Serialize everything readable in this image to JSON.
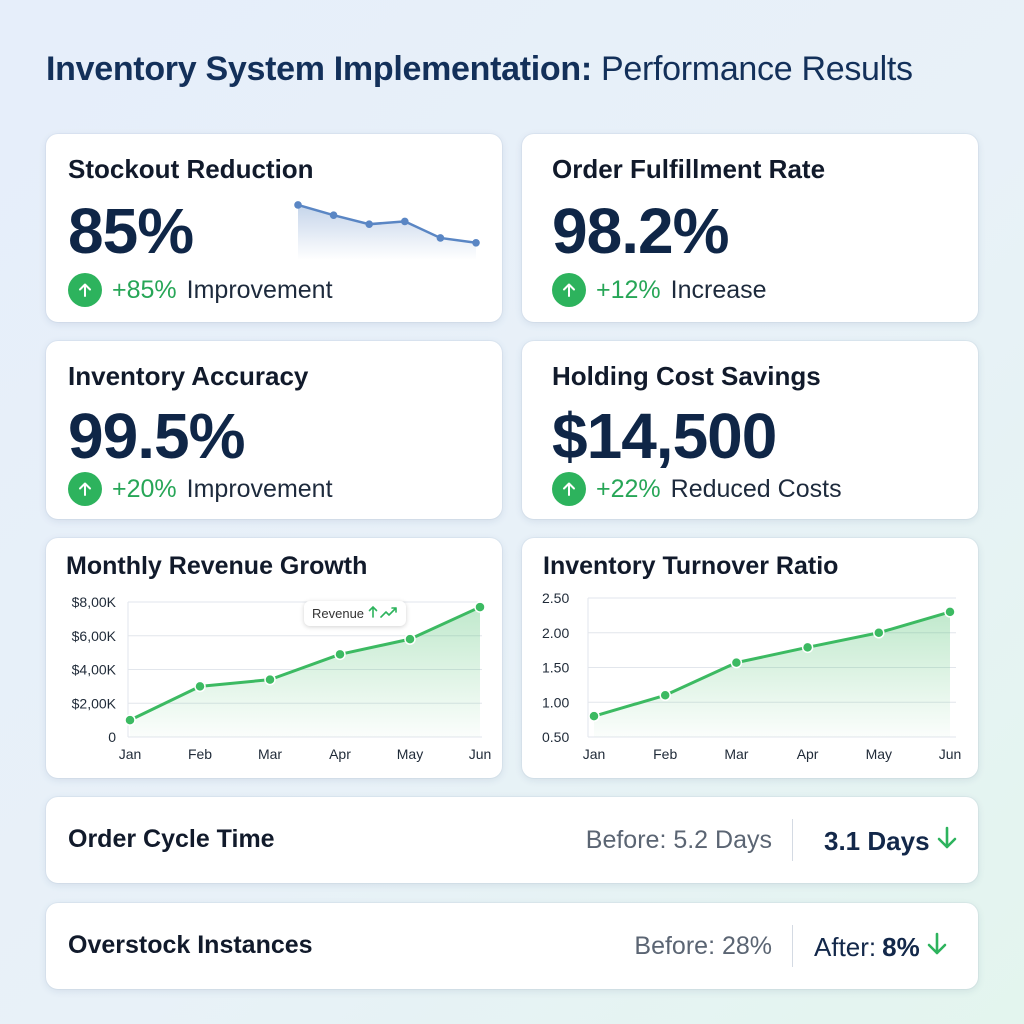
{
  "page": {
    "title_bold": "Inventory System Implementation:",
    "title_rest": " Performance Results"
  },
  "kpis": {
    "stockout": {
      "title": "Stockout Reduction",
      "value": "85%",
      "change_pct": "+85%",
      "change_label": "Improvement",
      "sparkline": [
        8,
        6.5,
        5.2,
        5.6,
        3.2,
        2.5
      ]
    },
    "fulfillment": {
      "title": "Order Fulfillment Rate",
      "value": "98.2%",
      "change_pct": "+12%",
      "change_label": "Increase"
    },
    "accuracy": {
      "title": "Inventory Accuracy",
      "value": "99.5%",
      "change_pct": "+20%",
      "change_label": "Improvement"
    },
    "holding": {
      "title": "Holding Cost Savings",
      "value": "$14,500",
      "change_pct": "+22%",
      "change_label": "Reduced Costs"
    }
  },
  "colors": {
    "accent_green": "#2db35d",
    "navy": "#0f2647",
    "line_green": "#3cba62",
    "spark_blue": "#5a86c4"
  },
  "chart_data": [
    {
      "type": "area",
      "title": "Monthly Revenue Growth",
      "categories": [
        "Jan",
        "Feb",
        "Mar",
        "Apr",
        "May",
        "Jun"
      ],
      "y_tick_labels": [
        "$8,00K",
        "$6,00K",
        "$4,00K",
        "$2,00K",
        "0"
      ],
      "y_ticks": [
        8000,
        6000,
        4000,
        2000,
        0
      ],
      "series": [
        {
          "name": "Revenue",
          "values": [
            1000,
            3000,
            3400,
            4900,
            5800,
            7700
          ]
        }
      ],
      "ylim": [
        0,
        8000
      ],
      "grid": true,
      "annotation": "Revenue"
    },
    {
      "type": "area",
      "title": "Inventory Turnover Ratio",
      "categories": [
        "Jan",
        "Feb",
        "Mar",
        "Apr",
        "May",
        "Jun"
      ],
      "y_tick_labels": [
        "2.50",
        "2.00",
        "1.50",
        "1.00",
        "0.50"
      ],
      "y_ticks": [
        2.5,
        2.0,
        1.5,
        1.0,
        0.5
      ],
      "series": [
        {
          "values": [
            0.8,
            1.1,
            1.57,
            1.79,
            2.0,
            2.3
          ]
        }
      ],
      "ylim": [
        0.5,
        2.5
      ],
      "grid": true
    }
  ],
  "metrics": {
    "cycle": {
      "title": "Order Cycle Time",
      "before": "Before: 5.2 Days",
      "after_prefix": "",
      "after_value": "3.1 Days"
    },
    "overstock": {
      "title": "Overstock Instances",
      "before": "Before: 28%",
      "after_prefix": "After: ",
      "after_value": "8%"
    }
  }
}
